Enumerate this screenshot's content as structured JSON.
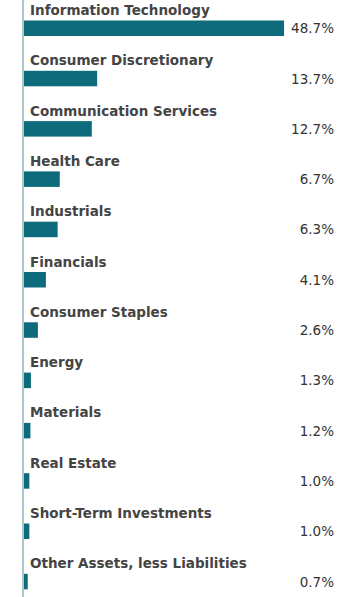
{
  "chart_data": {
    "type": "bar",
    "orientation": "horizontal",
    "categories": [
      "Information Technology",
      "Consumer Discretionary",
      "Communication Services",
      "Health Care",
      "Industrials",
      "Financials",
      "Consumer Staples",
      "Energy",
      "Materials",
      "Real Estate",
      "Short-Term Investments",
      "Other Assets, less Liabilities"
    ],
    "values": [
      48.7,
      13.7,
      12.7,
      6.7,
      6.3,
      4.1,
      2.6,
      1.3,
      1.2,
      1.0,
      1.0,
      0.7
    ],
    "value_labels": [
      "48.7%",
      "13.7%",
      "12.7%",
      "6.7%",
      "6.3%",
      "4.1%",
      "2.6%",
      "1.3%",
      "1.2%",
      "1.0%",
      "1.0%",
      "0.7%"
    ],
    "color": "#0e6b7b",
    "xlim": [
      0,
      50
    ],
    "data_labels": true,
    "tick_labels": false,
    "grid": false
  }
}
